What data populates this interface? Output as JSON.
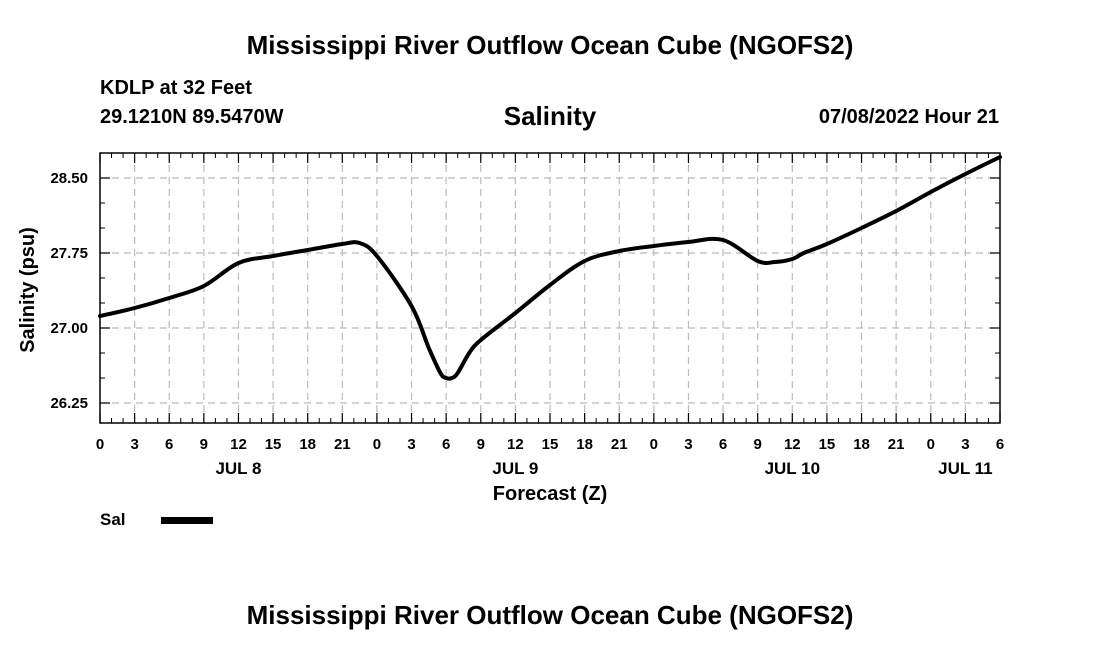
{
  "header": {
    "title": "Mississippi River Outflow Ocean Cube (NGOFS2)",
    "station": "KDLP at 32 Feet",
    "coordinates": "29.1210N  89.5470W",
    "parameter": "Salinity",
    "datetime": "07/08/2022 Hour 21"
  },
  "footer": {
    "title": "Mississippi River Outflow Ocean Cube (NGOFS2)"
  },
  "legend": {
    "label": "Sal",
    "color": "#000000"
  },
  "chart_data": {
    "type": "line",
    "title": "Salinity",
    "xlabel": "Forecast (Z)",
    "ylabel": "Salinity (psu)",
    "xlim": [
      0,
      78
    ],
    "ylim": [
      26.05,
      28.75
    ],
    "yticks": [
      26.25,
      27.0,
      27.75,
      28.5
    ],
    "ytick_labels": [
      "26.25",
      "27.00",
      "27.75",
      "28.50"
    ],
    "xtick_hours": [
      0,
      3,
      6,
      9,
      12,
      15,
      18,
      21,
      24,
      27,
      30,
      33,
      36,
      39,
      42,
      45,
      48,
      51,
      54,
      57,
      60,
      63,
      66,
      69,
      72,
      75,
      78
    ],
    "xtick_labels": [
      "0",
      "3",
      "6",
      "9",
      "12",
      "15",
      "18",
      "21",
      "0",
      "3",
      "6",
      "9",
      "12",
      "15",
      "18",
      "21",
      "0",
      "3",
      "6",
      "9",
      "12",
      "15",
      "18",
      "21",
      "0",
      "3",
      "6"
    ],
    "date_labels": [
      {
        "label": "JUL 8",
        "hour": 12
      },
      {
        "label": "JUL 9",
        "hour": 36
      },
      {
        "label": "JUL 10",
        "hour": 60
      },
      {
        "label": "JUL 11",
        "hour": 75
      }
    ],
    "grid": true,
    "series": [
      {
        "name": "Sal",
        "x": [
          0,
          3,
          6,
          9,
          12,
          15,
          18,
          21,
          22.5,
          24,
          27,
          28.5,
          29.5,
          30,
          30.5,
          31,
          32,
          33,
          36,
          39,
          42,
          45,
          48,
          51,
          54,
          57,
          58.5,
          60,
          61,
          63,
          66,
          69,
          72,
          75,
          78
        ],
        "y": [
          27.12,
          27.2,
          27.3,
          27.42,
          27.65,
          27.72,
          27.78,
          27.84,
          27.85,
          27.72,
          27.22,
          26.8,
          26.55,
          26.5,
          26.5,
          26.55,
          26.75,
          26.88,
          27.15,
          27.43,
          27.67,
          27.77,
          27.82,
          27.86,
          27.88,
          27.67,
          27.66,
          27.69,
          27.75,
          27.84,
          28.0,
          28.17,
          28.36,
          28.54,
          28.71
        ]
      }
    ]
  }
}
